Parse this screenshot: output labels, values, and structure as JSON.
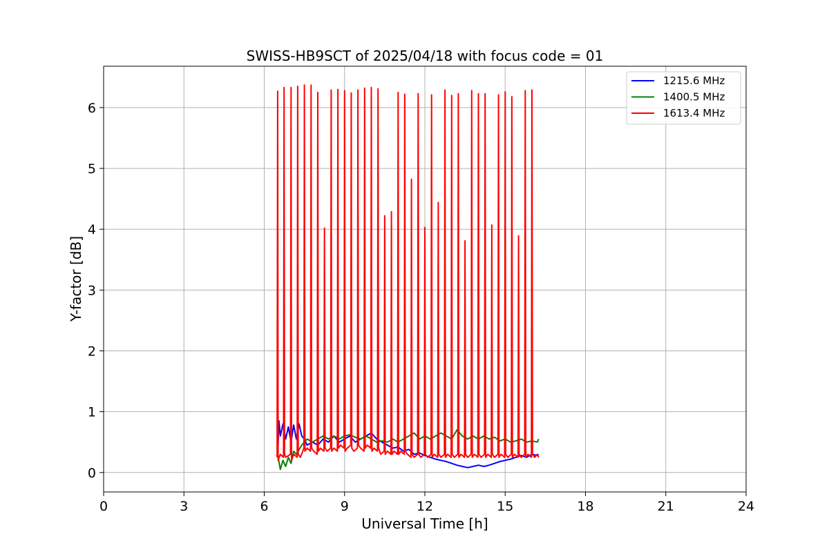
{
  "chart_data": {
    "type": "line",
    "title": "SWISS-HB9SCT of 2025/04/18 with focus code = 01",
    "xlabel": "Universal Time [h]",
    "ylabel": "Y-factor [dB]",
    "xlim": [
      0,
      24
    ],
    "ylim": [
      -0.32,
      6.68
    ],
    "xticks": [
      0,
      3,
      6,
      9,
      12,
      15,
      18,
      21,
      24
    ],
    "yticks": [
      0,
      1,
      2,
      3,
      4,
      5,
      6
    ],
    "grid": true,
    "legend_position": "top-right",
    "series": [
      {
        "name": "1215.6 MHz",
        "color": "#0000ff",
        "x": [
          6.5,
          6.55,
          6.6,
          6.7,
          6.8,
          6.9,
          7.0,
          7.1,
          7.2,
          7.3,
          7.4,
          7.5,
          7.6,
          7.8,
          8.0,
          8.2,
          8.4,
          8.6,
          8.8,
          9.0,
          9.2,
          9.4,
          9.6,
          9.8,
          10.0,
          10.2,
          10.4,
          10.6,
          10.8,
          11.0,
          11.2,
          11.4,
          11.6,
          11.8,
          12.0,
          12.2,
          12.4,
          12.6,
          12.8,
          13.0,
          13.2,
          13.4,
          13.6,
          13.8,
          14.0,
          14.2,
          14.4,
          14.6,
          14.8,
          15.0,
          15.2,
          15.4,
          15.6,
          15.8,
          16.0,
          16.2,
          16.25
        ],
        "y": [
          0.25,
          0.85,
          0.6,
          0.8,
          0.55,
          0.75,
          0.5,
          0.78,
          0.55,
          0.8,
          0.6,
          0.55,
          0.45,
          0.5,
          0.45,
          0.55,
          0.5,
          0.6,
          0.5,
          0.55,
          0.6,
          0.5,
          0.55,
          0.6,
          0.65,
          0.55,
          0.5,
          0.45,
          0.4,
          0.42,
          0.35,
          0.38,
          0.3,
          0.32,
          0.28,
          0.25,
          0.22,
          0.2,
          0.18,
          0.15,
          0.12,
          0.1,
          0.08,
          0.1,
          0.12,
          0.1,
          0.12,
          0.15,
          0.18,
          0.2,
          0.22,
          0.25,
          0.28,
          0.25,
          0.3,
          0.28,
          0.3
        ]
      },
      {
        "name": "1400.5 MHz",
        "color": "#008000",
        "x": [
          6.5,
          6.6,
          6.7,
          6.8,
          6.9,
          7.0,
          7.1,
          7.2,
          7.4,
          7.6,
          7.8,
          8.0,
          8.2,
          8.4,
          8.6,
          8.8,
          9.0,
          9.2,
          9.4,
          9.6,
          9.8,
          10.0,
          10.2,
          10.4,
          10.6,
          10.8,
          11.0,
          11.2,
          11.4,
          11.6,
          11.8,
          12.0,
          12.2,
          12.4,
          12.6,
          12.8,
          13.0,
          13.2,
          13.4,
          13.6,
          13.8,
          14.0,
          14.2,
          14.4,
          14.6,
          14.8,
          15.0,
          15.2,
          15.4,
          15.6,
          15.8,
          16.0,
          16.2,
          16.25
        ],
        "y": [
          0.3,
          0.05,
          0.2,
          0.1,
          0.25,
          0.15,
          0.35,
          0.3,
          0.45,
          0.55,
          0.5,
          0.55,
          0.6,
          0.55,
          0.6,
          0.55,
          0.6,
          0.62,
          0.58,
          0.55,
          0.6,
          0.55,
          0.5,
          0.52,
          0.5,
          0.55,
          0.5,
          0.55,
          0.6,
          0.65,
          0.55,
          0.6,
          0.55,
          0.6,
          0.65,
          0.6,
          0.55,
          0.7,
          0.6,
          0.55,
          0.6,
          0.55,
          0.6,
          0.55,
          0.58,
          0.52,
          0.55,
          0.5,
          0.52,
          0.55,
          0.5,
          0.52,
          0.5,
          0.55
        ]
      },
      {
        "name": "1613.4 MHz",
        "color": "#ff0000",
        "x": [
          6.48,
          6.5,
          6.52,
          6.6,
          6.72,
          6.74,
          6.76,
          6.8,
          6.98,
          7.0,
          7.02,
          7.1,
          7.23,
          7.25,
          7.27,
          7.35,
          7.48,
          7.5,
          7.52,
          7.6,
          7.73,
          7.75,
          7.77,
          7.85,
          7.98,
          8.0,
          8.02,
          8.1,
          8.23,
          8.25,
          8.27,
          8.35,
          8.48,
          8.5,
          8.52,
          8.6,
          8.73,
          8.75,
          8.77,
          8.85,
          8.98,
          9.0,
          9.02,
          9.1,
          9.23,
          9.25,
          9.27,
          9.35,
          9.48,
          9.5,
          9.52,
          9.6,
          9.73,
          9.75,
          9.77,
          9.85,
          9.98,
          10.0,
          10.02,
          10.1,
          10.23,
          10.25,
          10.27,
          10.35,
          10.48,
          10.5,
          10.52,
          10.6,
          10.73,
          10.75,
          10.77,
          10.85,
          10.98,
          11.0,
          11.02,
          11.1,
          11.23,
          11.25,
          11.27,
          11.35,
          11.48,
          11.5,
          11.52,
          11.6,
          11.73,
          11.75,
          11.77,
          11.85,
          11.98,
          12.0,
          12.02,
          12.1,
          12.23,
          12.25,
          12.27,
          12.35,
          12.48,
          12.5,
          12.52,
          12.6,
          12.73,
          12.75,
          12.77,
          12.85,
          12.98,
          13.0,
          13.02,
          13.1,
          13.23,
          13.25,
          13.27,
          13.35,
          13.48,
          13.5,
          13.52,
          13.6,
          13.73,
          13.75,
          13.77,
          13.85,
          13.98,
          14.0,
          14.02,
          14.1,
          14.23,
          14.25,
          14.27,
          14.35,
          14.48,
          14.5,
          14.52,
          14.6,
          14.73,
          14.75,
          14.77,
          14.85,
          14.98,
          15.0,
          15.02,
          15.1,
          15.23,
          15.25,
          15.27,
          15.35,
          15.48,
          15.5,
          15.52,
          15.6,
          15.73,
          15.75,
          15.77,
          15.85,
          15.98,
          16.0,
          16.02,
          16.1,
          16.2,
          16.25
        ],
        "y": [
          0.25,
          6.27,
          0.2,
          0.3,
          0.25,
          6.33,
          0.3,
          0.25,
          0.3,
          6.33,
          0.2,
          0.3,
          0.25,
          6.35,
          0.3,
          0.25,
          0.4,
          6.37,
          0.35,
          0.4,
          0.35,
          6.37,
          0.4,
          0.35,
          0.3,
          6.25,
          0.35,
          0.4,
          0.35,
          4.02,
          0.4,
          0.35,
          0.4,
          6.29,
          0.35,
          0.4,
          0.35,
          6.3,
          0.4,
          0.45,
          0.4,
          6.28,
          0.35,
          0.4,
          0.45,
          6.24,
          0.4,
          0.35,
          0.4,
          6.29,
          0.45,
          0.4,
          0.35,
          6.32,
          0.4,
          0.45,
          0.4,
          6.33,
          0.35,
          0.4,
          0.35,
          6.31,
          0.4,
          0.3,
          0.35,
          4.22,
          0.3,
          0.35,
          0.3,
          4.29,
          0.3,
          0.35,
          0.3,
          6.25,
          0.3,
          0.35,
          0.3,
          6.22,
          0.35,
          0.3,
          0.25,
          4.82,
          0.3,
          0.25,
          0.3,
          6.23,
          0.3,
          0.25,
          0.3,
          4.03,
          0.3,
          0.25,
          0.3,
          6.21,
          0.25,
          0.3,
          0.25,
          4.44,
          0.3,
          0.25,
          0.3,
          6.29,
          0.25,
          0.3,
          0.25,
          6.2,
          0.3,
          0.25,
          0.3,
          6.23,
          0.25,
          0.3,
          0.25,
          3.81,
          0.3,
          0.25,
          0.3,
          6.28,
          0.25,
          0.3,
          0.25,
          6.23,
          0.3,
          0.25,
          0.3,
          6.23,
          0.25,
          0.3,
          0.25,
          4.07,
          0.3,
          0.25,
          0.3,
          6.21,
          0.25,
          0.3,
          0.25,
          6.26,
          0.3,
          0.25,
          0.3,
          6.18,
          0.25,
          0.3,
          0.25,
          3.89,
          0.3,
          0.25,
          0.3,
          6.28,
          0.25,
          0.3,
          0.25,
          6.29,
          0.3,
          0.25,
          0.3,
          0.25
        ]
      }
    ]
  }
}
